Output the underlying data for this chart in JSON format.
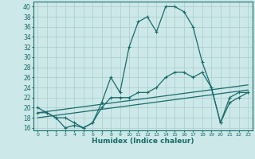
{
  "xlabel": "Humidex (Indice chaleur)",
  "background_color": "#cce8e8",
  "grid_color": "#aacccc",
  "line_color": "#1a6b6b",
  "xlim": [
    -0.5,
    23.5
  ],
  "ylim": [
    15.5,
    41
  ],
  "yticks": [
    16,
    18,
    20,
    22,
    24,
    26,
    28,
    30,
    32,
    34,
    36,
    38,
    40
  ],
  "xticks": [
    0,
    1,
    2,
    3,
    4,
    5,
    6,
    7,
    8,
    9,
    10,
    11,
    12,
    13,
    14,
    15,
    16,
    17,
    18,
    19,
    20,
    21,
    22,
    23
  ],
  "series1_x": [
    0,
    1,
    2,
    3,
    4,
    5,
    6,
    7,
    8,
    9,
    10,
    11,
    12,
    13,
    14,
    15,
    16,
    17,
    18,
    19,
    20,
    21,
    22,
    23
  ],
  "series1_y": [
    20,
    19,
    18,
    16,
    16.5,
    16,
    17,
    21,
    26,
    23,
    32,
    37,
    38,
    35,
    40,
    40,
    39,
    36,
    29,
    24,
    17,
    22,
    23,
    23
  ],
  "series2_x": [
    0,
    1,
    2,
    3,
    4,
    5,
    6,
    7,
    8,
    9,
    10,
    11,
    12,
    13,
    14,
    15,
    16,
    17,
    18,
    19,
    20,
    21,
    22,
    23
  ],
  "series2_y": [
    19,
    19,
    18,
    18,
    17,
    16,
    17,
    20,
    22,
    22,
    22,
    23,
    23,
    24,
    26,
    27,
    27,
    26,
    27,
    24,
    17,
    21,
    22,
    23
  ],
  "series3_x": [
    0,
    23
  ],
  "series3_y": [
    19.0,
    24.5
  ],
  "series4_x": [
    0,
    23
  ],
  "series4_y": [
    18.0,
    23.5
  ]
}
